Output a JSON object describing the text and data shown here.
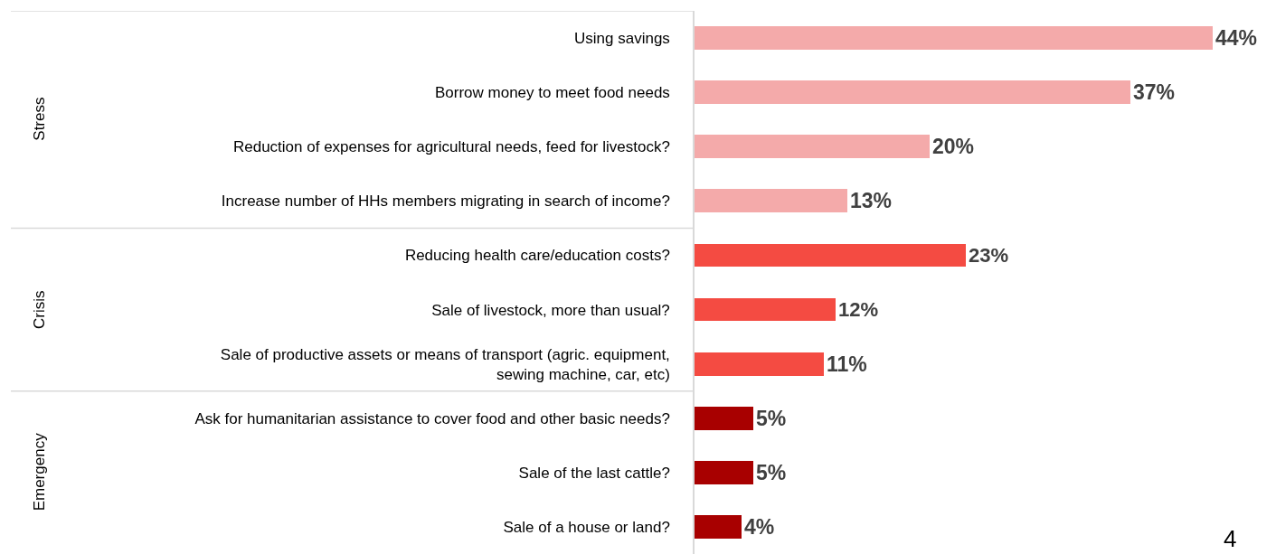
{
  "chart_data": {
    "type": "bar",
    "orientation": "horizontal",
    "categories": [
      "Using savings",
      "Borrow money to meet food needs",
      "Reduction of expenses for agricultural needs, feed for livestock?",
      "Increase number of HHs members migrating in search of income?",
      "Reducing health care/education costs?",
      "Sale of livestock, more than usual?",
      "Sale of productive assets or means of transport (agric. equipment, sewing machine, car, etc)",
      "Ask for humanitarian assistance to cover food and other basic needs?",
      "Sale of the last cattle?",
      "Sale of a house or land?"
    ],
    "series": [
      {
        "color": "#f4aaaa",
        "values": [
          44,
          37,
          20,
          13,
          null,
          null,
          null,
          null,
          null,
          null
        ],
        "value_labels": [
          "44%",
          "37%",
          "20%",
          "13%",
          null,
          null,
          null,
          null,
          null,
          null
        ]
      },
      {
        "color": "#f44b42",
        "values": [
          null,
          null,
          null,
          null,
          23,
          12,
          11,
          null,
          null,
          null
        ],
        "value_labels": [
          null,
          null,
          null,
          null,
          "23%",
          "12%",
          "11%",
          null,
          null,
          null
        ]
      },
      {
        "color": "#a80000",
        "values": [
          null,
          null,
          null,
          null,
          null,
          null,
          null,
          5,
          5,
          4
        ],
        "value_labels": [
          null,
          null,
          null,
          null,
          null,
          null,
          null,
          "5%",
          "5%",
          "4%"
        ]
      }
    ],
    "annotations": [
      "Stress",
      "Crisis",
      "Emergency",
      "4"
    ],
    "legend": false
  }
}
